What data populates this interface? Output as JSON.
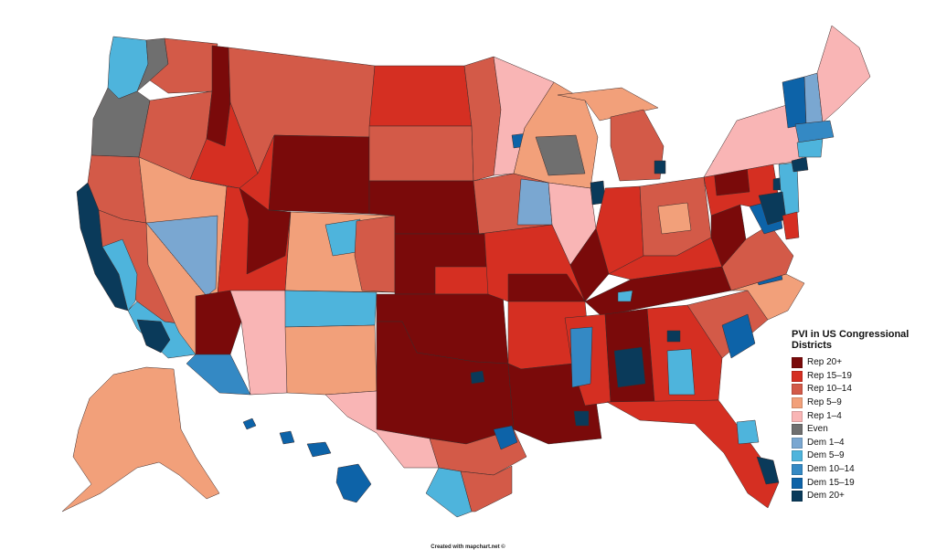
{
  "colors": {
    "rep20": "#7a0a0a",
    "rep15": "#d52f22",
    "rep10": "#d35a48",
    "rep5": "#f2a07a",
    "rep1": "#f9b5b5",
    "even": "#6f6f6f",
    "dem1": "#7aa7d1",
    "dem5": "#4eb4dc",
    "dem10": "#3489c4",
    "dem15": "#0d63a8",
    "dem20": "#0a3a5a"
  },
  "legend": {
    "title": "PVI in US Congressional Districts",
    "items": [
      {
        "label": "Rep 20+",
        "color": "#7a0a0a"
      },
      {
        "label": "Rep 15–19",
        "color": "#d52f22"
      },
      {
        "label": "Rep 10–14",
        "color": "#d35a48"
      },
      {
        "label": "Rep 5–9",
        "color": "#f2a07a"
      },
      {
        "label": "Rep 1–4",
        "color": "#f9b5b5"
      },
      {
        "label": "Even",
        "color": "#6f6f6f"
      },
      {
        "label": "Dem 1–4",
        "color": "#7aa7d1"
      },
      {
        "label": "Dem 5–9",
        "color": "#4eb4dc"
      },
      {
        "label": "Dem 10–14",
        "color": "#3489c4"
      },
      {
        "label": "Dem 15–19",
        "color": "#0d63a8"
      },
      {
        "label": "Dem 20+",
        "color": "#0a3a5a"
      }
    ]
  },
  "credit": "Created with mapchart.net ©"
}
